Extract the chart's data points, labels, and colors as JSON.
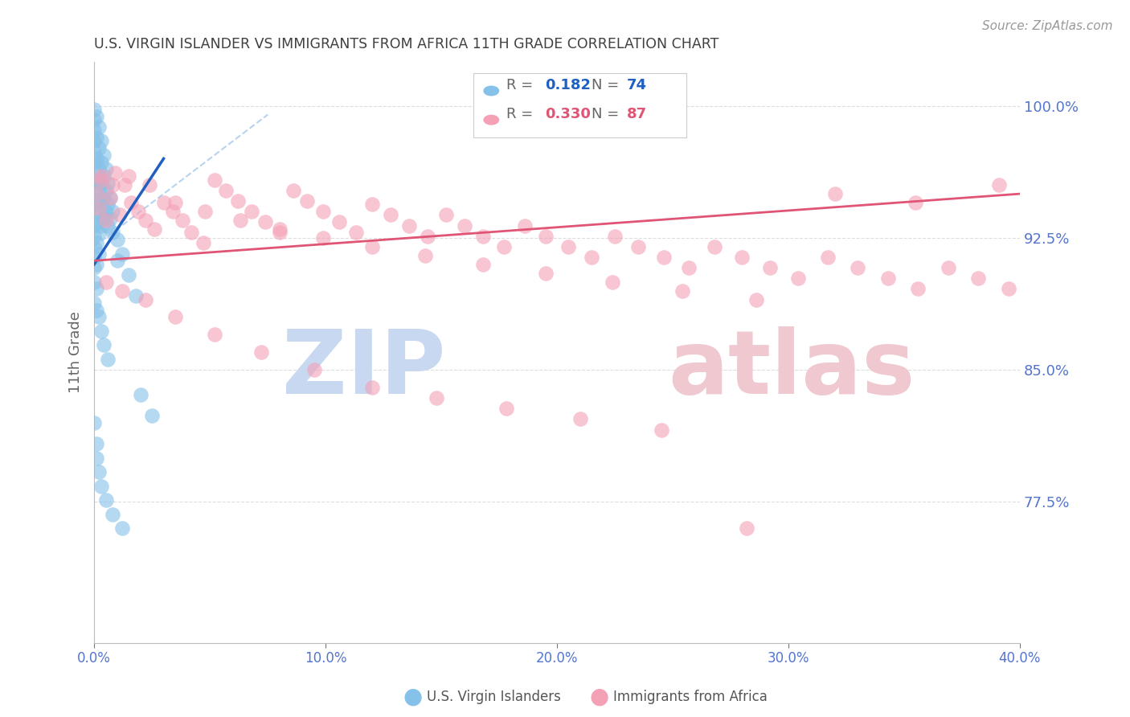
{
  "title": "U.S. VIRGIN ISLANDER VS IMMIGRANTS FROM AFRICA 11TH GRADE CORRELATION CHART",
  "source": "Source: ZipAtlas.com",
  "ylabel": "11th Grade",
  "ytick_values": [
    0.775,
    0.85,
    0.925,
    1.0
  ],
  "xlim": [
    0.0,
    0.4
  ],
  "ylim": [
    0.695,
    1.025
  ],
  "blue_color": "#85C1E8",
  "pink_color": "#F4A0B5",
  "blue_line_color": "#2060C0",
  "pink_line_color": "#E05575",
  "ref_line_color": "#AACCEE",
  "title_color": "#404040",
  "axis_label_color": "#5575CC",
  "grid_color": "#DDDDDD",
  "watermark_zip_color": "#C8D8F0",
  "watermark_atlas_color": "#F0C8D0",
  "blue_x": [
    0.0,
    0.0,
    0.0,
    0.0,
    0.0,
    0.0,
    0.0,
    0.0,
    0.0,
    0.0,
    0.0,
    0.0,
    0.0,
    0.0,
    0.0,
    0.0,
    0.001,
    0.001,
    0.001,
    0.001,
    0.001,
    0.001,
    0.001,
    0.001,
    0.002,
    0.002,
    0.002,
    0.002,
    0.002,
    0.002,
    0.002,
    0.003,
    0.003,
    0.003,
    0.003,
    0.003,
    0.004,
    0.004,
    0.004,
    0.004,
    0.005,
    0.005,
    0.005,
    0.006,
    0.006,
    0.006,
    0.007,
    0.007,
    0.008,
    0.008,
    0.01,
    0.01,
    0.012,
    0.015,
    0.018,
    0.0,
    0.0,
    0.001,
    0.001,
    0.002,
    0.003,
    0.004,
    0.006,
    0.02,
    0.025,
    0.0,
    0.001,
    0.001,
    0.002,
    0.003,
    0.005,
    0.008,
    0.012
  ],
  "blue_y": [
    0.998,
    0.992,
    0.986,
    0.98,
    0.974,
    0.968,
    0.962,
    0.956,
    0.95,
    0.944,
    0.938,
    0.932,
    0.926,
    0.92,
    0.914,
    0.908,
    0.994,
    0.982,
    0.97,
    0.958,
    0.946,
    0.934,
    0.922,
    0.91,
    0.988,
    0.976,
    0.964,
    0.952,
    0.94,
    0.928,
    0.916,
    0.98,
    0.968,
    0.956,
    0.944,
    0.932,
    0.972,
    0.96,
    0.948,
    0.936,
    0.964,
    0.952,
    0.94,
    0.956,
    0.944,
    0.932,
    0.948,
    0.936,
    0.94,
    0.928,
    0.924,
    0.912,
    0.916,
    0.904,
    0.892,
    0.9,
    0.888,
    0.896,
    0.884,
    0.88,
    0.872,
    0.864,
    0.856,
    0.836,
    0.824,
    0.82,
    0.808,
    0.8,
    0.792,
    0.784,
    0.776,
    0.768,
    0.76
  ],
  "pink_x": [
    0.001,
    0.002,
    0.003,
    0.005,
    0.007,
    0.009,
    0.011,
    0.013,
    0.016,
    0.019,
    0.022,
    0.026,
    0.03,
    0.034,
    0.038,
    0.042,
    0.047,
    0.052,
    0.057,
    0.062,
    0.068,
    0.074,
    0.08,
    0.086,
    0.092,
    0.099,
    0.106,
    0.113,
    0.12,
    0.128,
    0.136,
    0.144,
    0.152,
    0.16,
    0.168,
    0.177,
    0.186,
    0.195,
    0.205,
    0.215,
    0.225,
    0.235,
    0.246,
    0.257,
    0.268,
    0.28,
    0.292,
    0.304,
    0.317,
    0.33,
    0.343,
    0.356,
    0.369,
    0.382,
    0.395,
    0.003,
    0.008,
    0.015,
    0.024,
    0.035,
    0.048,
    0.063,
    0.08,
    0.099,
    0.12,
    0.143,
    0.168,
    0.195,
    0.224,
    0.254,
    0.286,
    0.32,
    0.355,
    0.391,
    0.005,
    0.012,
    0.022,
    0.035,
    0.052,
    0.072,
    0.095,
    0.12,
    0.148,
    0.178,
    0.21,
    0.245,
    0.282
  ],
  "pink_y": [
    0.95,
    0.942,
    0.958,
    0.935,
    0.948,
    0.962,
    0.938,
    0.955,
    0.945,
    0.94,
    0.935,
    0.93,
    0.945,
    0.94,
    0.935,
    0.928,
    0.922,
    0.958,
    0.952,
    0.946,
    0.94,
    0.934,
    0.928,
    0.952,
    0.946,
    0.94,
    0.934,
    0.928,
    0.944,
    0.938,
    0.932,
    0.926,
    0.938,
    0.932,
    0.926,
    0.92,
    0.932,
    0.926,
    0.92,
    0.914,
    0.926,
    0.92,
    0.914,
    0.908,
    0.92,
    0.914,
    0.908,
    0.902,
    0.914,
    0.908,
    0.902,
    0.896,
    0.908,
    0.902,
    0.896,
    0.96,
    0.955,
    0.96,
    0.955,
    0.945,
    0.94,
    0.935,
    0.93,
    0.925,
    0.92,
    0.915,
    0.91,
    0.905,
    0.9,
    0.895,
    0.89,
    0.95,
    0.945,
    0.955,
    0.9,
    0.895,
    0.89,
    0.88,
    0.87,
    0.86,
    0.85,
    0.84,
    0.834,
    0.828,
    0.822,
    0.816,
    0.76
  ],
  "blue_trendline_x": [
    0.0,
    0.03
  ],
  "blue_trendline_y": [
    0.91,
    0.97
  ],
  "pink_trendline_x": [
    0.0,
    0.4
  ],
  "pink_trendline_y": [
    0.912,
    0.95
  ],
  "ref_line_x": [
    0.0,
    0.075
  ],
  "ref_line_y": [
    0.92,
    0.995
  ]
}
